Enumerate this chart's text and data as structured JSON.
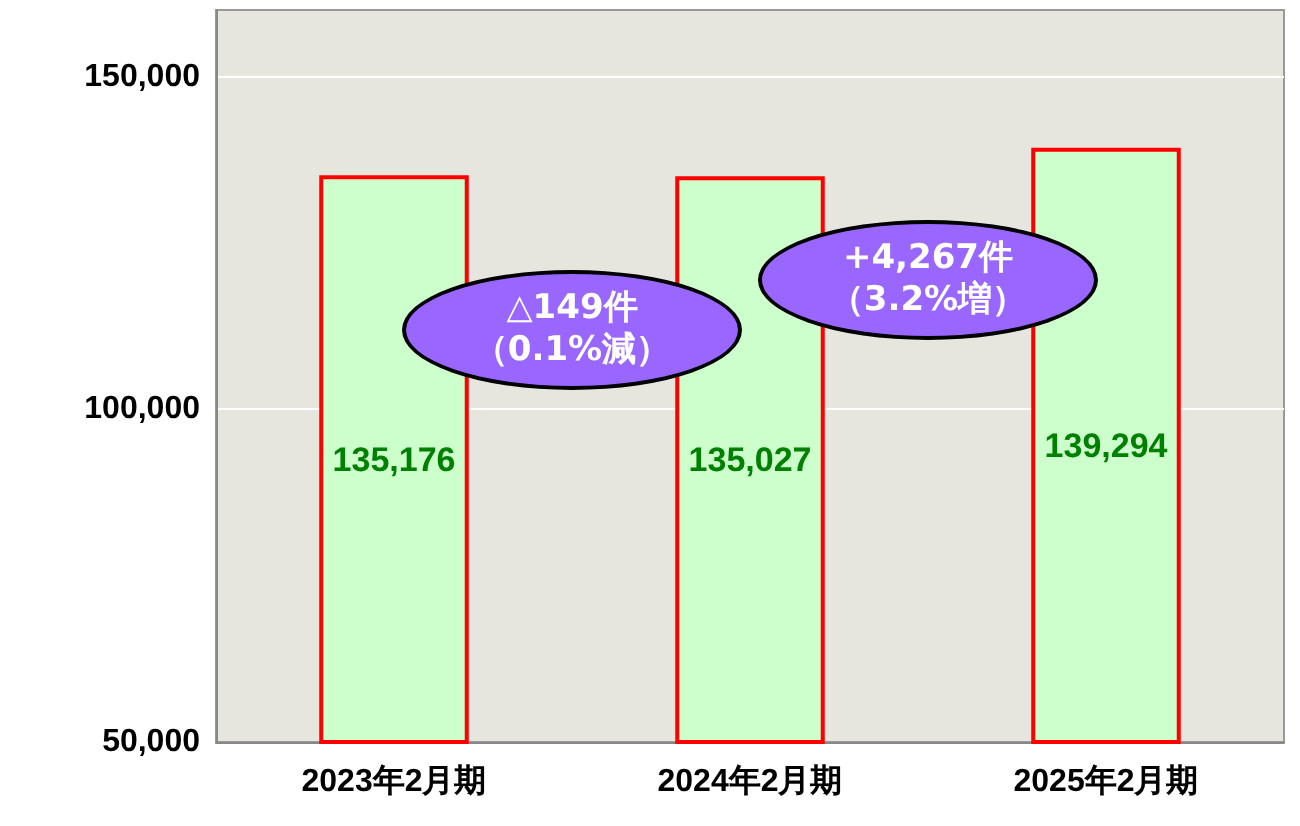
{
  "chart_data": {
    "type": "bar",
    "categories": [
      "2023年2月期",
      "2024年2月期",
      "2025年2月期"
    ],
    "values": [
      135176,
      135027,
      139294
    ],
    "color": "#ccffcc",
    "value_labels": [
      "135,176",
      "135,027",
      "139,294"
    ],
    "ylim": [
      50000,
      160000
    ],
    "yticks": [
      {
        "value": 50000,
        "label": "50,000"
      },
      {
        "value": 100000,
        "label": "100,000"
      },
      {
        "value": 150000,
        "label": "150,000"
      }
    ],
    "grid": "y",
    "annotations": [
      "△149件（0.1%減）",
      "+4,267件（3.2%増）"
    ]
  }
}
